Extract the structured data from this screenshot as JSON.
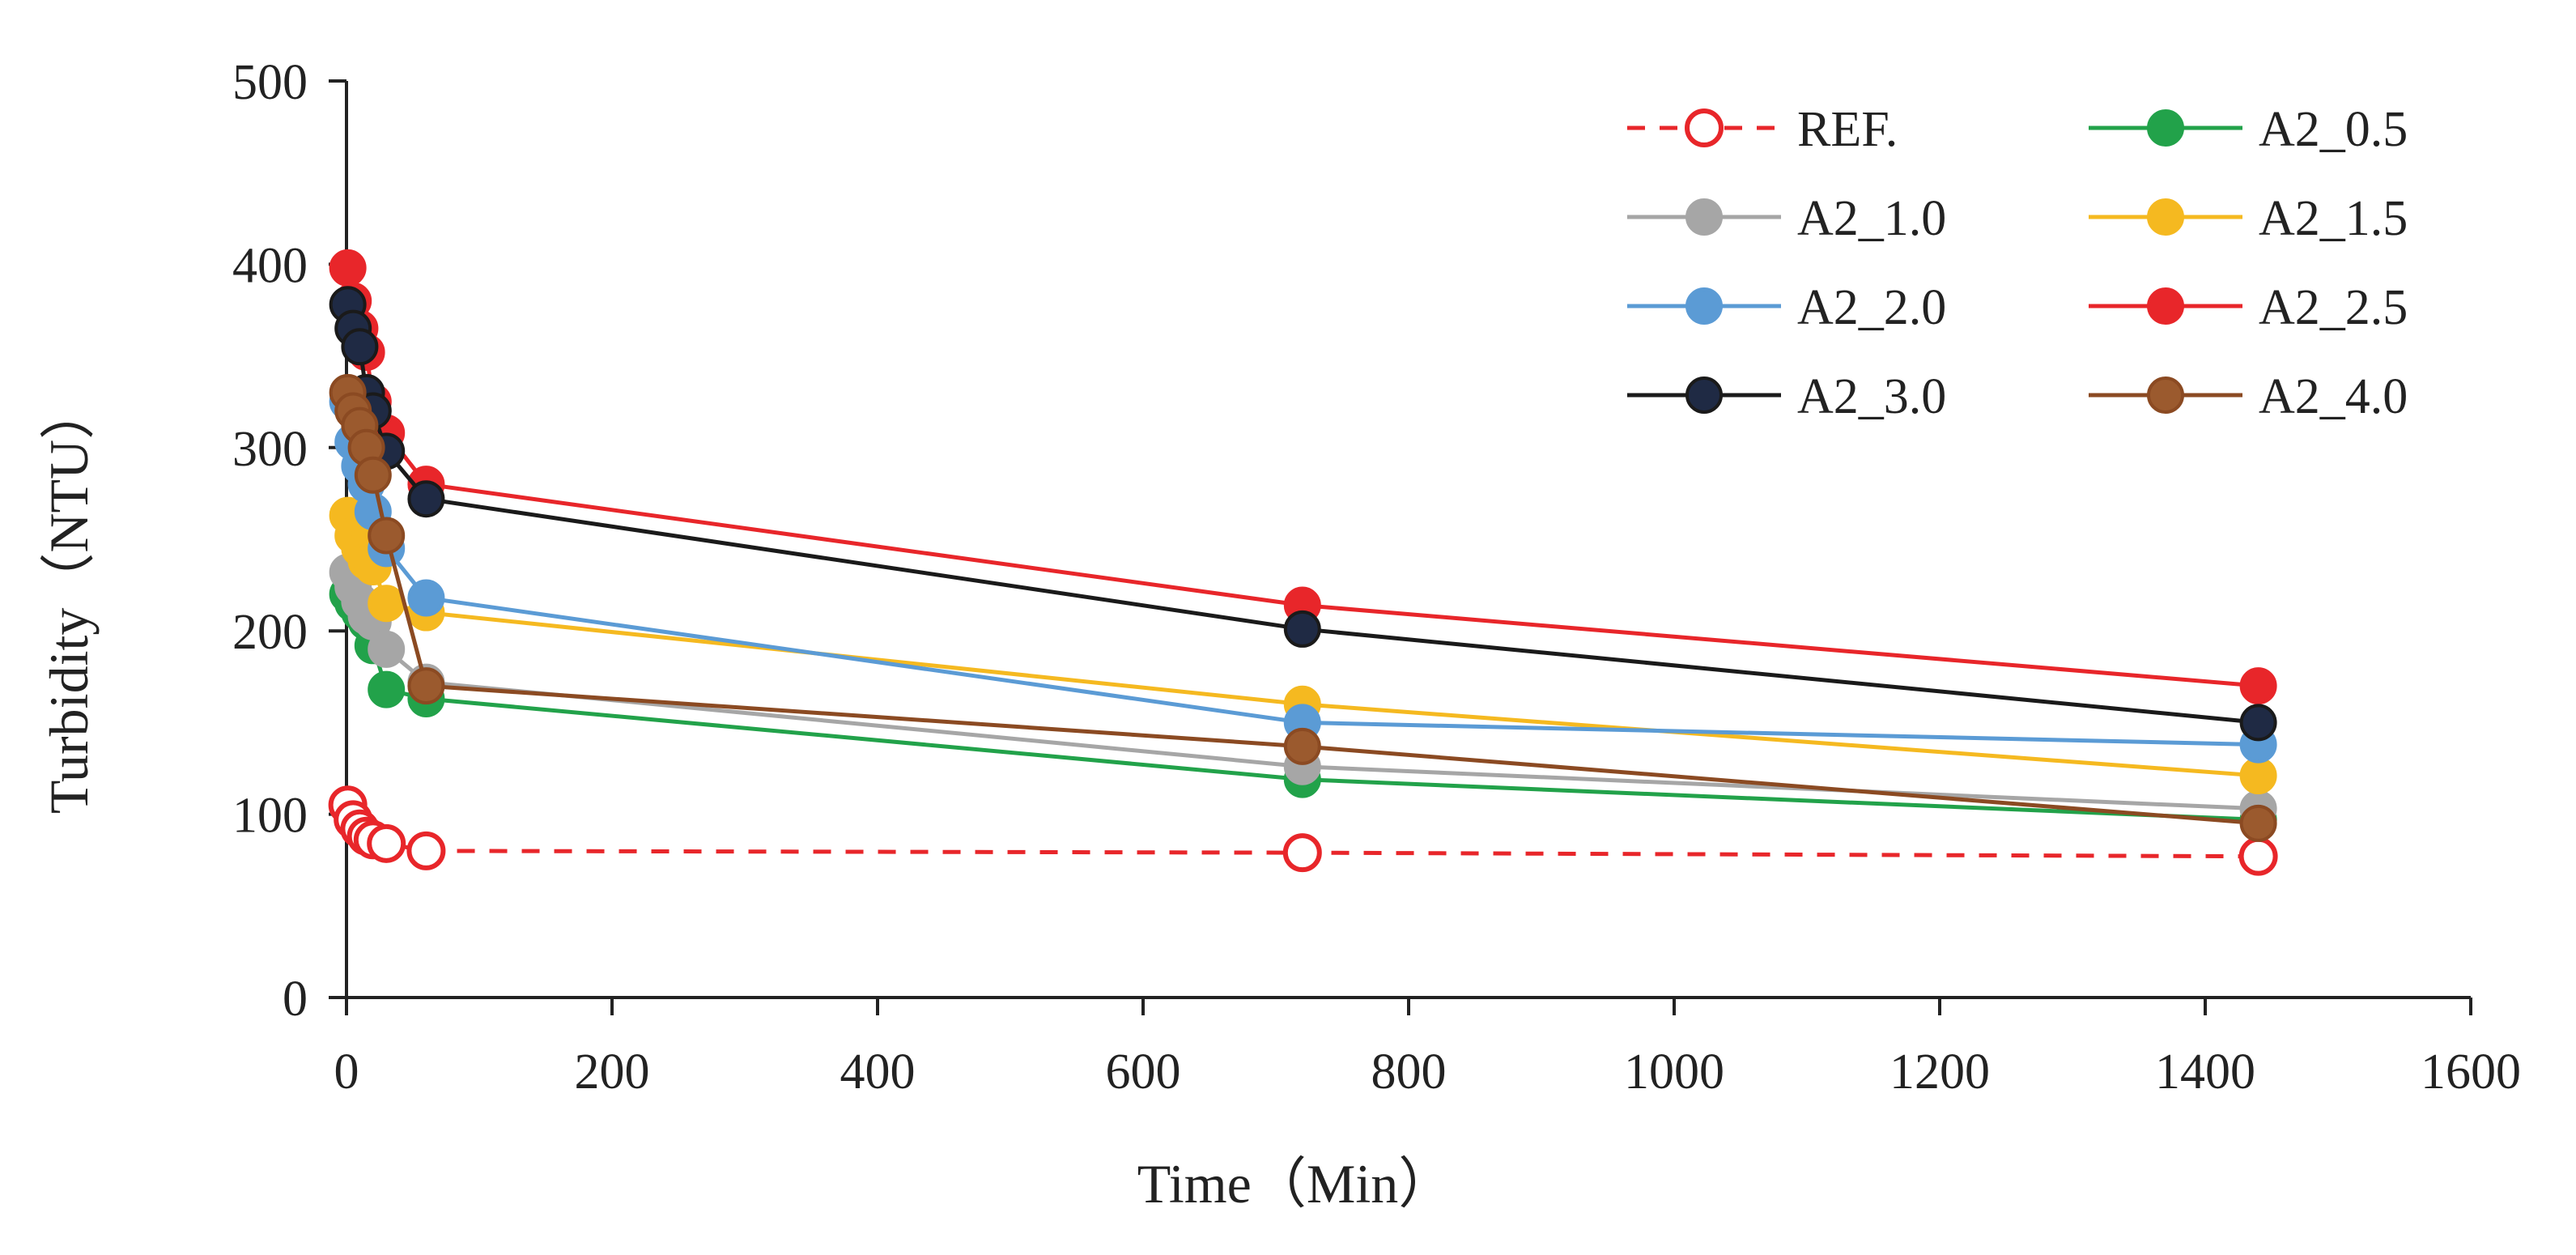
{
  "chart_data": {
    "type": "line",
    "title": "",
    "xlabel": "Time（Min）",
    "ylabel": "Turbidity（NTU）",
    "xlim": [
      0,
      1600
    ],
    "ylim": [
      0,
      500
    ],
    "xticks": [
      0,
      200,
      400,
      600,
      800,
      1000,
      1200,
      1400,
      1600
    ],
    "yticks": [
      0,
      100,
      200,
      300,
      400,
      500
    ],
    "grid": false,
    "legend_position": "top-right",
    "x": [
      1,
      5,
      10,
      15,
      20,
      30,
      60,
      720,
      1440
    ],
    "series": [
      {
        "name": "REF.",
        "color": "#e8262a",
        "style": "dashed",
        "marker": "open-circle",
        "values": [
          105,
          97,
          92,
          88,
          86,
          84,
          80,
          79,
          77
        ]
      },
      {
        "name": "A2_0.5",
        "color": "#22a24a",
        "style": "solid",
        "marker": "filled-circle",
        "values": [
          220,
          215,
          210,
          205,
          192,
          168,
          163,
          119,
          97
        ]
      },
      {
        "name": "A2_1.0",
        "color": "#a6a6a6",
        "style": "solid",
        "marker": "filled-circle",
        "values": [
          232,
          224,
          216,
          208,
          205,
          190,
          172,
          126,
          103
        ]
      },
      {
        "name": "A2_1.5",
        "color": "#f5b920",
        "style": "solid",
        "marker": "filled-circle",
        "values": [
          263,
          252,
          245,
          238,
          235,
          215,
          210,
          160,
          121
        ]
      },
      {
        "name": "A2_2.0",
        "color": "#5b9bd5",
        "style": "solid",
        "marker": "filled-circle",
        "values": [
          325,
          303,
          290,
          280,
          265,
          245,
          218,
          150,
          138
        ]
      },
      {
        "name": "A2_2.5",
        "color": "#e8262a",
        "style": "solid",
        "marker": "filled-circle",
        "values": [
          398,
          380,
          365,
          352,
          325,
          308,
          280,
          214,
          170
        ]
      },
      {
        "name": "A2_3.0",
        "color": "#1a1a1a",
        "fill": "#1f2a44",
        "style": "solid",
        "marker": "filled-circle",
        "values": [
          378,
          365,
          355,
          330,
          320,
          298,
          272,
          201,
          150
        ]
      },
      {
        "name": "A2_4.0",
        "color": "#8b4a22",
        "fill": "#9b5a2e",
        "style": "solid",
        "marker": "filled-circle",
        "values": [
          330,
          320,
          312,
          300,
          285,
          252,
          170,
          137,
          95
        ]
      }
    ]
  }
}
